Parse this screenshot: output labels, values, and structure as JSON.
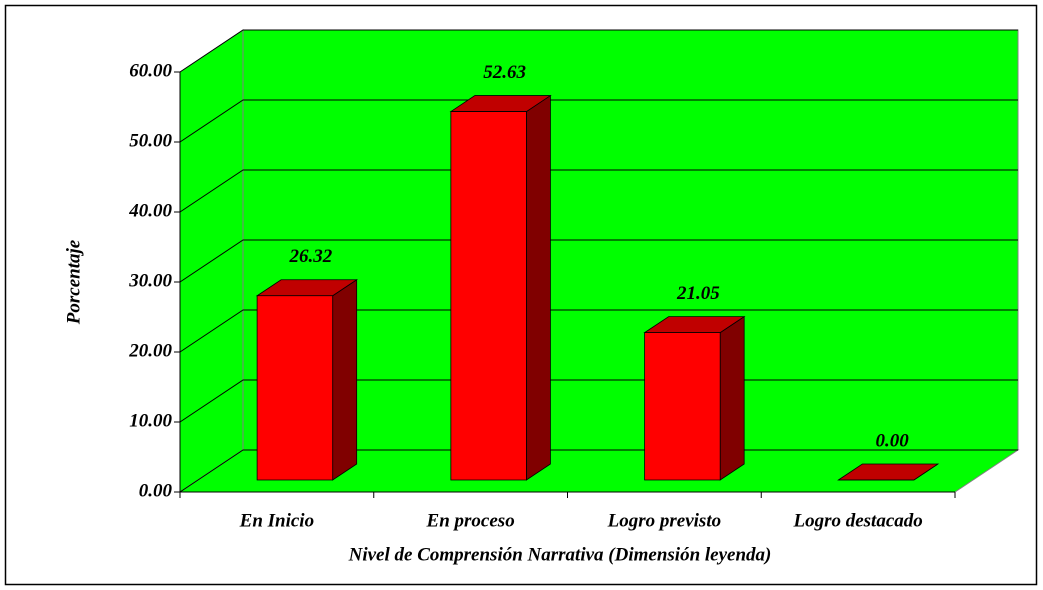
{
  "chart_data": {
    "type": "bar3d",
    "categories": [
      "En Inicio",
      "En proceso",
      "Logro previsto",
      "Logro destacado"
    ],
    "values": [
      26.32,
      52.63,
      21.05,
      0.0
    ],
    "value_labels": [
      "26.32",
      "52.63",
      "21.05",
      "0.00"
    ],
    "color": "#ff0000",
    "wall_color": "#00ff00",
    "ylabel": "Porcentaje",
    "xlabel": "Nivel de Comprensión Narrativa (Dimensión leyenda)",
    "ylim": [
      0,
      60
    ],
    "yticks": [
      {
        "value": 0,
        "label": "0.00"
      },
      {
        "value": 10,
        "label": "10.00"
      },
      {
        "value": 20,
        "label": "20.00"
      },
      {
        "value": 30,
        "label": "30.00"
      },
      {
        "value": 40,
        "label": "40.00"
      },
      {
        "value": 50,
        "label": "50.00"
      },
      {
        "value": 60,
        "label": "60.00"
      }
    ],
    "grid": true
  }
}
